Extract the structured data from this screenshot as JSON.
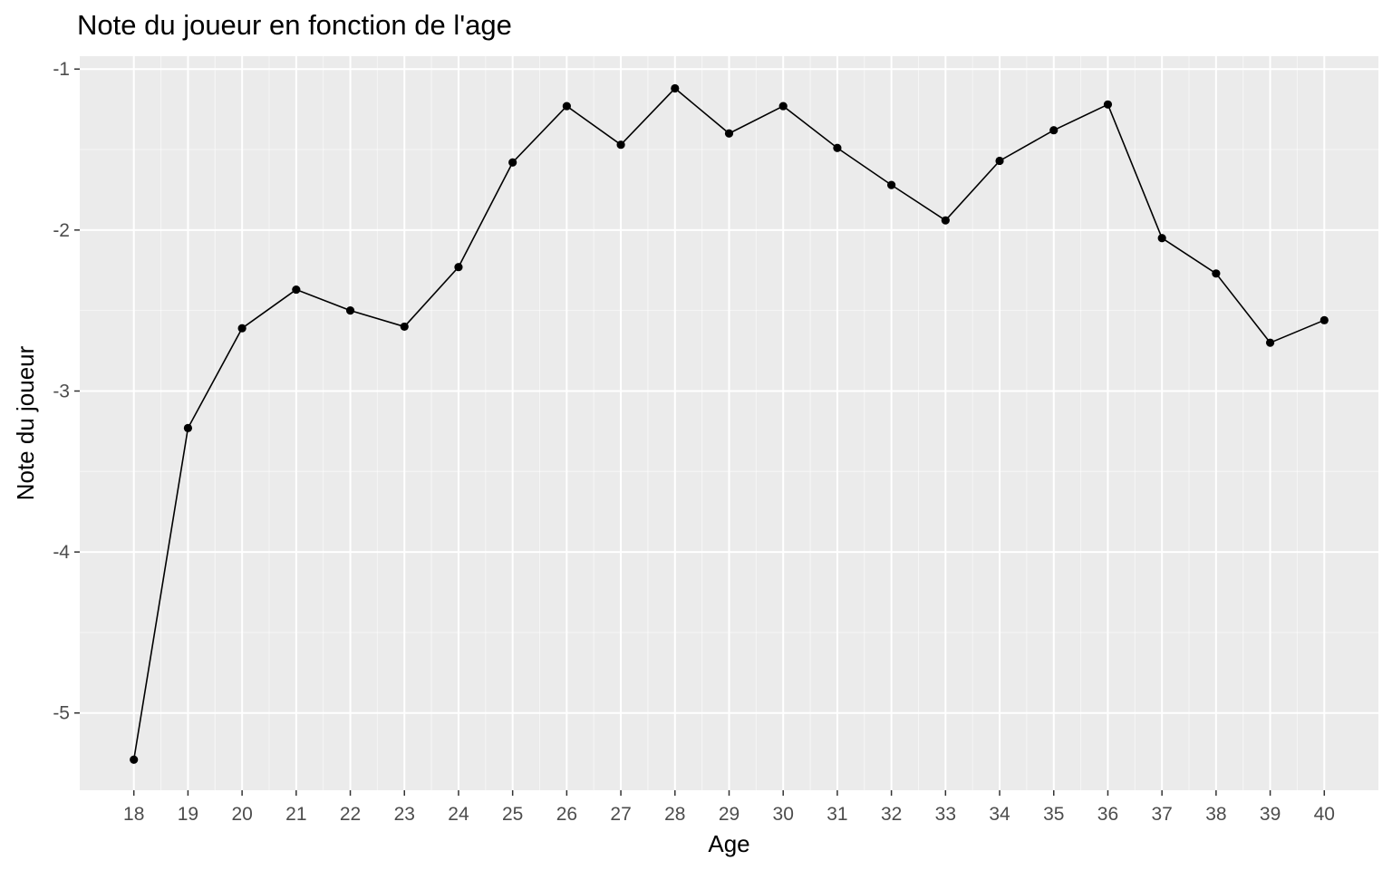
{
  "chart_data": {
    "type": "line",
    "title": "Note du joueur en fonction de l'age",
    "xlabel": "Age",
    "ylabel": "Note du joueur",
    "x": [
      18,
      19,
      20,
      21,
      22,
      23,
      24,
      25,
      26,
      27,
      28,
      29,
      30,
      31,
      32,
      33,
      34,
      35,
      36,
      37,
      38,
      39,
      40
    ],
    "series": [
      {
        "values": [
          -5.29,
          -3.23,
          -2.61,
          -2.37,
          -2.5,
          -2.6,
          -2.23,
          -1.58,
          -1.23,
          -1.47,
          -1.12,
          -1.4,
          -1.23,
          -1.49,
          -1.72,
          -1.94,
          -1.57,
          -1.38,
          -1.22,
          -2.05,
          -2.27,
          -2.7,
          -2.56
        ]
      }
    ],
    "x_ticks": [
      "18",
      "19",
      "20",
      "21",
      "22",
      "23",
      "24",
      "25",
      "26",
      "27",
      "28",
      "29",
      "30",
      "31",
      "32",
      "33",
      "34",
      "35",
      "36",
      "37",
      "38",
      "39",
      "40"
    ],
    "y_ticks": [
      -1,
      -2,
      -3,
      -4,
      -5
    ],
    "y_tick_labels": [
      "-1",
      "-2",
      "-3",
      "-4",
      "-5"
    ],
    "xlim": [
      17.0,
      41.0
    ],
    "ylim": [
      -5.48,
      -0.92
    ],
    "grid": true,
    "legend": "none",
    "colors": {
      "panel": "#ebebeb",
      "grid_major": "#ffffff",
      "line": "#000000",
      "point": "#000000",
      "tick_text": "#4d4d4d"
    }
  }
}
